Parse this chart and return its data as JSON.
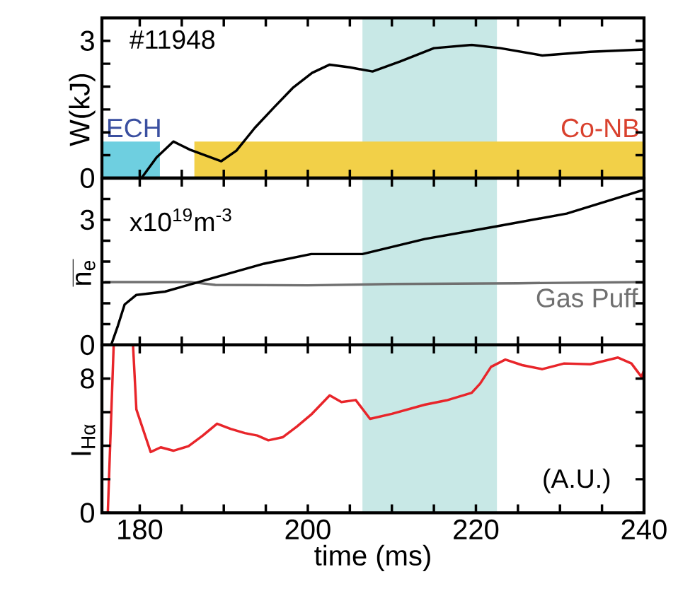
{
  "chart_data": [
    {
      "type": "line",
      "ylabel": "W(kJ)",
      "annotations": [
        "#11948"
      ],
      "xlim": [
        175.5,
        240
      ],
      "ylim": [
        0,
        3.5
      ],
      "tick_labels": "y",
      "xticks": [
        180,
        {
          "value": 185,
          "label": null
        },
        {
          "value": 190,
          "label": null
        },
        {
          "value": 195,
          "label": null
        },
        200,
        {
          "value": 205,
          "label": null
        },
        {
          "value": 210,
          "label": null
        },
        {
          "value": 215,
          "label": null
        },
        220,
        {
          "value": 225,
          "label": null
        },
        {
          "value": 230,
          "label": null
        },
        {
          "value": 235,
          "label": null
        },
        240
      ],
      "yticks": [
        0,
        {
          "value": 0.5,
          "label": null
        },
        {
          "value": 1,
          "label": null
        },
        {
          "value": 1.5,
          "label": null
        },
        {
          "value": 2,
          "label": null
        },
        {
          "value": 2.5,
          "label": null
        },
        3
      ],
      "bands": [
        {
          "axis": "x",
          "from": 206.5,
          "to": 222.5,
          "color": "#c8e8e6"
        }
      ],
      "series": [
        {
          "type": "area",
          "name": "ECH",
          "color": "#6ecfe0",
          "x": [
            175.5,
            182.4
          ],
          "values": [
            0.8,
            0.8
          ]
        },
        {
          "type": "area",
          "name": "Co-NB",
          "color": "#f2d048",
          "x": [
            186.5,
            240
          ],
          "values": [
            0.8,
            0.8
          ]
        },
        {
          "color": "#000000",
          "x": [
            180.2,
            182,
            184.0,
            186,
            189.7,
            191.5,
            193.7,
            196,
            198.2,
            200.5,
            202.6,
            205,
            207.7,
            211,
            215.0,
            219.5,
            222.9,
            227.9,
            233.6,
            240
          ],
          "values": [
            0,
            0.45,
            0.8,
            0.62,
            0.37,
            0.6,
            1.1,
            1.55,
            1.97,
            2.3,
            2.48,
            2.42,
            2.33,
            2.55,
            2.84,
            2.91,
            2.84,
            2.68,
            2.76,
            2.81
          ]
        }
      ]
    },
    {
      "type": "line",
      "ylabel": "n$_{e}$",
      "annotations": [
        "x10$^{19}$m$^{-3}$"
      ],
      "xlim": [
        175.5,
        240
      ],
      "ylim": [
        0,
        4
      ],
      "tick_labels": "y",
      "xticks": [
        180,
        {
          "value": 185,
          "label": null
        },
        {
          "value": 190,
          "label": null
        },
        {
          "value": 195,
          "label": null
        },
        200,
        {
          "value": 205,
          "label": null
        },
        {
          "value": 210,
          "label": null
        },
        {
          "value": 215,
          "label": null
        },
        220,
        {
          "value": 225,
          "label": null
        },
        {
          "value": 230,
          "label": null
        },
        {
          "value": 235,
          "label": null
        },
        240
      ],
      "yticks": [
        0,
        {
          "value": 0.5,
          "label": null
        },
        {
          "value": 1,
          "label": null
        },
        {
          "value": 1.5,
          "label": null
        },
        {
          "value": 2,
          "label": null
        },
        {
          "value": 2.5,
          "label": null
        },
        3,
        {
          "value": 3.5,
          "label": null
        }
      ],
      "bands": [
        {
          "axis": "x",
          "from": 206.5,
          "to": 222.5,
          "color": "#c8e8e6"
        }
      ],
      "series": [
        {
          "name": "Gas Puff",
          "color": "#707070",
          "x": [
            175.8,
            186,
            189,
            200,
            210,
            225,
            240
          ],
          "values": [
            1.51,
            1.51,
            1.44,
            1.43,
            1.46,
            1.48,
            1.51
          ]
        },
        {
          "color": "#000000",
          "x": [
            176.6,
            177.4,
            178.2,
            179.6,
            183.0,
            188.6,
            194.8,
            200.4,
            206.5,
            213.9,
            222.3,
            230.8,
            240
          ],
          "values": [
            0,
            0.46,
            0.97,
            1.2,
            1.28,
            1.6,
            1.95,
            2.18,
            2.18,
            2.54,
            2.84,
            3.15,
            3.72
          ]
        }
      ]
    },
    {
      "type": "line",
      "ylabel": "I$_{Hα}$",
      "xlabel": "time (ms)",
      "annotations": [
        "(A.U.)"
      ],
      "xlim": [
        175.5,
        240
      ],
      "ylim": [
        0,
        10
      ],
      "xticks": [
        180,
        {
          "value": 185,
          "label": null
        },
        {
          "value": 190,
          "label": null
        },
        {
          "value": 195,
          "label": null
        },
        200,
        {
          "value": 205,
          "label": null
        },
        {
          "value": 210,
          "label": null
        },
        {
          "value": 215,
          "label": null
        },
        220,
        {
          "value": 225,
          "label": null
        },
        {
          "value": 230,
          "label": null
        },
        {
          "value": 235,
          "label": null
        },
        240
      ],
      "yticks": [
        0,
        {
          "value": 2,
          "label": null
        },
        {
          "value": 4,
          "label": null
        },
        {
          "value": 6,
          "label": null
        },
        8,
        {
          "value": 10,
          "label": null
        }
      ],
      "bands": [
        {
          "axis": "x",
          "from": 206.5,
          "to": 222.5,
          "color": "#c8e8e6"
        }
      ],
      "series": [
        {
          "color": "#e8252a",
          "x": [
            176.2,
            176.9,
            179.2,
            179.6,
            181.3,
            182.5,
            184,
            185.8,
            187.5,
            189.2,
            190.8,
            192.5,
            194,
            195.3,
            197,
            198.7,
            200.5,
            202.6,
            204,
            205.7,
            207.4,
            210,
            213.9,
            216.5,
            219.5,
            220.5,
            221.8,
            223.5,
            225.5,
            227.9,
            230.5,
            233.6,
            236.9,
            238.5,
            239.7,
            240
          ],
          "values": [
            0,
            10,
            10,
            6.16,
            3.62,
            3.9,
            3.7,
            3.97,
            4.6,
            5.31,
            5.0,
            4.75,
            4.6,
            4.32,
            4.5,
            5.14,
            5.9,
            7.0,
            6.6,
            6.72,
            5.6,
            5.9,
            6.44,
            6.7,
            7.15,
            7.7,
            8.7,
            9.13,
            8.8,
            8.56,
            8.9,
            8.85,
            9.25,
            8.9,
            8.1,
            8.5
          ]
        }
      ]
    }
  ]
}
